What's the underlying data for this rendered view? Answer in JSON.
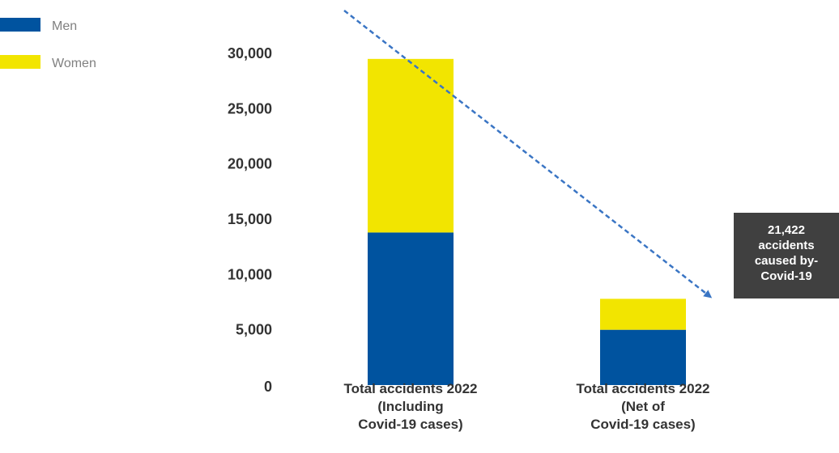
{
  "chart_data": {
    "type": "bar",
    "stacked": true,
    "categories": [
      [
        "Total accidents 2022",
        "(Including",
        "Covid-19 cases)"
      ],
      [
        "Total accidents 2022",
        "(Net of",
        "Covid-19 cases)"
      ]
    ],
    "series": [
      {
        "name": "Men",
        "color": "#00539f",
        "values": [
          13800,
          5000
        ]
      },
      {
        "name": "Women",
        "color": "#f2e500",
        "values": [
          15700,
          2800
        ]
      }
    ],
    "ylim": [
      0,
      30000
    ],
    "yticks": [
      0,
      5000,
      10000,
      15000,
      20000,
      25000,
      30000
    ],
    "ytick_labels": [
      "0",
      "5,000",
      "10,000",
      "15,000",
      "20,000",
      "25,000",
      "30,000"
    ],
    "legend_position": "top-left",
    "grid": false,
    "annotation": {
      "lines": [
        "21,422",
        "accidents",
        "caused by-",
        "Covid-19"
      ],
      "box_color": "#404040",
      "arrow_color": "#3a75c4",
      "arrow_style": "dashed"
    }
  }
}
